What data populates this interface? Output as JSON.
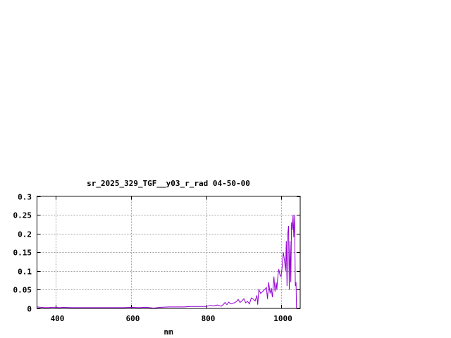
{
  "chart_data": {
    "type": "line",
    "title": "sr_2025_329_TGF__y03_r_rad 04-50-00",
    "xlabel": "nm",
    "ylabel": "",
    "xlim": [
      350,
      1050
    ],
    "ylim": [
      0,
      0.3
    ],
    "grid": true,
    "line_color": "#9400d3",
    "xticks": [
      400,
      600,
      800,
      1000
    ],
    "xtick_labels": [
      "400",
      "600",
      "800",
      "1000"
    ],
    "yticks": [
      0,
      0.05,
      0.1,
      0.15,
      0.2,
      0.25,
      0.3
    ],
    "ytick_labels": [
      "0",
      "0.05",
      "0.1",
      "0.15",
      "0.2",
      "0.25",
      "0.3"
    ],
    "series": [
      {
        "x": [
          350,
          360,
          370,
          380,
          390,
          400,
          410,
          420,
          440,
          460,
          480,
          500,
          520,
          540,
          560,
          580,
          600,
          620,
          640,
          660,
          680,
          700,
          720,
          740,
          760,
          780,
          800,
          810,
          820,
          830,
          840,
          845,
          850,
          855,
          860,
          865,
          870,
          875,
          880,
          885,
          890,
          895,
          900,
          905,
          910,
          915,
          920,
          925,
          930,
          935,
          937,
          940,
          945,
          950,
          955,
          960,
          963,
          966,
          970,
          973,
          976,
          980,
          983,
          986,
          988,
          990,
          993,
          996,
          999,
          1002,
          1005,
          1008,
          1011,
          1013,
          1015,
          1017,
          1019,
          1021,
          1023,
          1025,
          1027,
          1029,
          1031,
          1033,
          1035,
          1037,
          1039,
          1040
        ],
        "y": [
          0.004,
          0.003,
          0.002,
          0.002,
          0.003,
          0.003,
          0.002,
          0.003,
          0.002,
          0.002,
          0.002,
          0.002,
          0.002,
          0.002,
          0.002,
          0.002,
          0.003,
          0.002,
          0.003,
          0.001,
          0.003,
          0.004,
          0.004,
          0.004,
          0.005,
          0.005,
          0.005,
          0.008,
          0.007,
          0.009,
          0.006,
          0.01,
          0.016,
          0.01,
          0.017,
          0.012,
          0.014,
          0.015,
          0.018,
          0.024,
          0.016,
          0.02,
          0.026,
          0.015,
          0.019,
          0.012,
          0.028,
          0.025,
          0.02,
          0.035,
          0.01,
          0.05,
          0.04,
          0.045,
          0.05,
          0.056,
          0.025,
          0.07,
          0.04,
          0.055,
          0.03,
          0.085,
          0.045,
          0.07,
          0.05,
          0.08,
          0.105,
          0.09,
          0.085,
          0.11,
          0.15,
          0.13,
          0.1,
          0.18,
          0.06,
          0.2,
          0.22,
          0.05,
          0.18,
          0.07,
          0.23,
          0.21,
          0.25,
          0.19,
          0.25,
          0.06,
          0.07,
          0.0
        ]
      }
    ]
  }
}
